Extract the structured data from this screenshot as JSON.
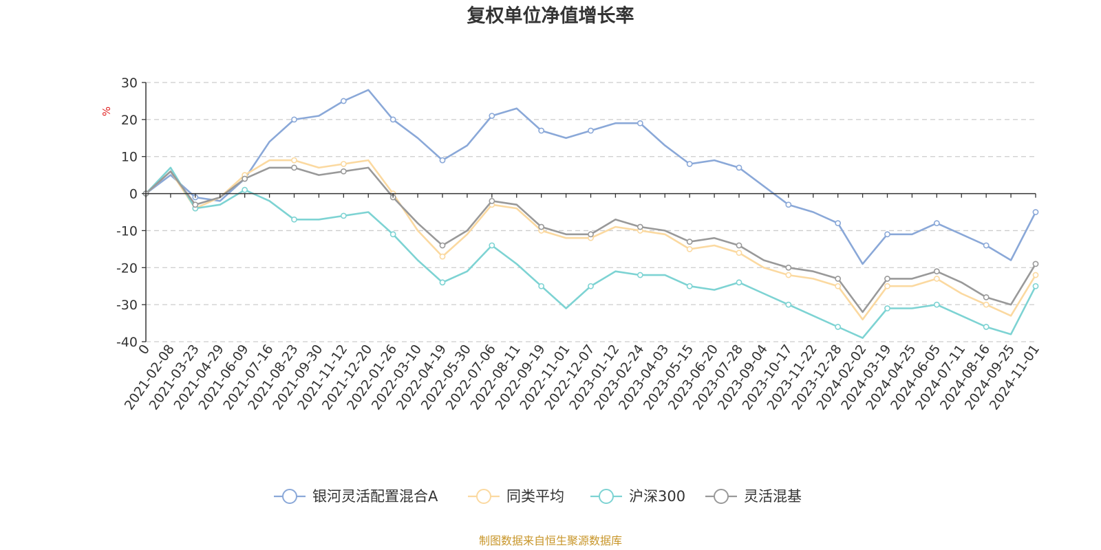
{
  "chart_data": {
    "type": "line",
    "title": "复权单位净值增长率",
    "ylabel": "%",
    "ylim": [
      -40,
      30
    ],
    "yticks": [
      30,
      20,
      10,
      0,
      -10,
      -20,
      -30,
      -40
    ],
    "grid": true,
    "legend_position": "bottom",
    "x_categories": [
      "0",
      "2021-02-08",
      "2021-03-23",
      "2021-04-29",
      "2021-06-09",
      "2021-07-16",
      "2021-08-23",
      "2021-09-30",
      "2021-11-12",
      "2021-12-20",
      "2022-01-26",
      "2022-03-10",
      "2022-04-19",
      "2022-05-30",
      "2022-07-06",
      "2022-08-11",
      "2022-09-19",
      "2022-11-01",
      "2022-12-07",
      "2023-01-12",
      "2023-02-24",
      "2023-04-03",
      "2023-05-15",
      "2023-06-20",
      "2023-07-28",
      "2023-09-04",
      "2023-10-17",
      "2023-11-22",
      "2023-12-28",
      "2024-02-02",
      "2024-03-19",
      "2024-04-25",
      "2024-06-05",
      "2024-07-11",
      "2024-08-16",
      "2024-09-25",
      "2024-11-01"
    ],
    "series": [
      {
        "name": "银河灵活配置混合A",
        "color": "#8aa8d8",
        "values": [
          0,
          5,
          -1,
          -2,
          4,
          14,
          20,
          21,
          25,
          28,
          20,
          15,
          9,
          13,
          21,
          23,
          17,
          15,
          17,
          19,
          19,
          13,
          8,
          9,
          7,
          2,
          -3,
          -5,
          -8,
          -19,
          -11,
          -11,
          -8,
          -11,
          -14,
          -18,
          -5
        ]
      },
      {
        "name": "同类平均",
        "color": "#fbd9a0",
        "values": [
          0,
          6,
          -4,
          -1,
          5,
          9,
          9,
          7,
          8,
          9,
          0,
          -10,
          -17,
          -11,
          -3,
          -4,
          -10,
          -12,
          -12,
          -9,
          -10,
          -11,
          -15,
          -14,
          -16,
          -20,
          -22,
          -23,
          -25,
          -34,
          -25,
          -25,
          -23,
          -27,
          -30,
          -33,
          -22
        ]
      },
      {
        "name": "沪深300",
        "color": "#7dd3d3",
        "values": [
          0,
          7,
          -4,
          -3,
          1,
          -2,
          -7,
          -7,
          -6,
          -5,
          -11,
          -18,
          -24,
          -21,
          -14,
          -19,
          -25,
          -31,
          -25,
          -21,
          -22,
          -22,
          -25,
          -26,
          -24,
          -27,
          -30,
          -33,
          -36,
          -39,
          -31,
          -31,
          -30,
          -33,
          -36,
          -38,
          -25
        ]
      },
      {
        "name": "灵活混基",
        "color": "#999999",
        "values": [
          0,
          6,
          -3,
          -1,
          4,
          7,
          7,
          5,
          6,
          7,
          -1,
          -8,
          -14,
          -10,
          -2,
          -3,
          -9,
          -11,
          -11,
          -7,
          -9,
          -10,
          -13,
          -12,
          -14,
          -18,
          -20,
          -21,
          -23,
          -32,
          -23,
          -23,
          -21,
          -24,
          -28,
          -30,
          -19
        ]
      }
    ]
  },
  "source_text": "制图数据来自恒生聚源数据库"
}
